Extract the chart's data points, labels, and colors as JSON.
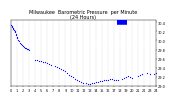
{
  "title": "Milwaukee  Barometric Pressure  per Minute",
  "subtitle": "(24 Hours)",
  "background_color": "#ffffff",
  "plot_bg_color": "#ffffff",
  "dot_color": "#0000ff",
  "dot_size": 0.8,
  "grid_color": "#aaaaaa",
  "grid_style": ":",
  "title_fontsize": 3.5,
  "tick_fontsize": 2.5,
  "ylim": [
    29.0,
    30.45
  ],
  "xlim": [
    0,
    1440
  ],
  "yticks": [
    29.0,
    29.2,
    29.4,
    29.6,
    29.8,
    30.0,
    30.2,
    30.4
  ],
  "xtick_positions": [
    0,
    60,
    120,
    180,
    240,
    300,
    360,
    420,
    480,
    540,
    600,
    660,
    720,
    780,
    840,
    900,
    960,
    1020,
    1080,
    1140,
    1200,
    1260,
    1320,
    1380,
    1440
  ],
  "xtick_labels": [
    "0",
    "1",
    "2",
    "3",
    "4",
    "5",
    "6",
    "7",
    "8",
    "9",
    "10",
    "11",
    "12",
    "13",
    "14",
    "15",
    "16",
    "17",
    "18",
    "19",
    "20",
    "21",
    "22",
    "23",
    "24"
  ],
  "vgrid_positions": [
    60,
    120,
    180,
    240,
    300,
    360,
    420,
    480,
    540,
    600,
    660,
    720,
    780,
    840,
    900,
    960,
    1020,
    1080,
    1140,
    1200,
    1260,
    1320,
    1380
  ],
  "series": [
    [
      0,
      30.33
    ],
    [
      5,
      30.32
    ],
    [
      10,
      30.3
    ],
    [
      15,
      30.28
    ],
    [
      20,
      30.26
    ],
    [
      25,
      30.24
    ],
    [
      30,
      30.22
    ],
    [
      35,
      30.2
    ],
    [
      40,
      30.18
    ],
    [
      45,
      30.15
    ],
    [
      50,
      30.12
    ],
    [
      55,
      30.08
    ],
    [
      60,
      30.05
    ],
    [
      70,
      30.02
    ],
    [
      80,
      29.98
    ],
    [
      90,
      29.94
    ],
    [
      100,
      29.92
    ],
    [
      110,
      29.9
    ],
    [
      120,
      29.88
    ],
    [
      130,
      29.86
    ],
    [
      140,
      29.84
    ],
    [
      150,
      29.83
    ],
    [
      160,
      29.82
    ],
    [
      170,
      29.81
    ],
    [
      180,
      29.8
    ],
    [
      240,
      29.58
    ],
    [
      260,
      29.56
    ],
    [
      280,
      29.55
    ],
    [
      300,
      29.54
    ],
    [
      320,
      29.53
    ],
    [
      340,
      29.52
    ],
    [
      360,
      29.5
    ],
    [
      380,
      29.48
    ],
    [
      400,
      29.46
    ],
    [
      440,
      29.44
    ],
    [
      460,
      29.42
    ],
    [
      480,
      29.4
    ],
    [
      500,
      29.38
    ],
    [
      520,
      29.35
    ],
    [
      540,
      29.32
    ],
    [
      560,
      29.28
    ],
    [
      580,
      29.25
    ],
    [
      600,
      29.22
    ],
    [
      620,
      29.19
    ],
    [
      640,
      29.16
    ],
    [
      660,
      29.13
    ],
    [
      680,
      29.11
    ],
    [
      700,
      29.09
    ],
    [
      720,
      29.07
    ],
    [
      740,
      29.06
    ],
    [
      760,
      29.05
    ],
    [
      780,
      29.05
    ],
    [
      800,
      29.06
    ],
    [
      820,
      29.07
    ],
    [
      840,
      29.08
    ],
    [
      860,
      29.09
    ],
    [
      880,
      29.1
    ],
    [
      900,
      29.11
    ],
    [
      920,
      29.12
    ],
    [
      940,
      29.13
    ],
    [
      960,
      29.14
    ],
    [
      980,
      29.15
    ],
    [
      1000,
      29.15
    ],
    [
      1020,
      29.14
    ],
    [
      1040,
      29.13
    ],
    [
      1060,
      29.12
    ],
    [
      1100,
      29.15
    ],
    [
      1120,
      29.18
    ],
    [
      1140,
      29.2
    ],
    [
      1160,
      29.22
    ],
    [
      1180,
      29.2
    ],
    [
      1200,
      29.18
    ],
    [
      1260,
      29.22
    ],
    [
      1280,
      29.24
    ],
    [
      1300,
      29.26
    ],
    [
      1350,
      29.28
    ],
    [
      1380,
      29.26
    ],
    [
      1420,
      29.27
    ],
    [
      1440,
      29.28
    ]
  ],
  "flat_segment_x1": 1050,
  "flat_segment_x2": 1155,
  "flat_segment_y": 30.4,
  "flat_color": "#0000ff",
  "flat_linewidth": 4.0
}
